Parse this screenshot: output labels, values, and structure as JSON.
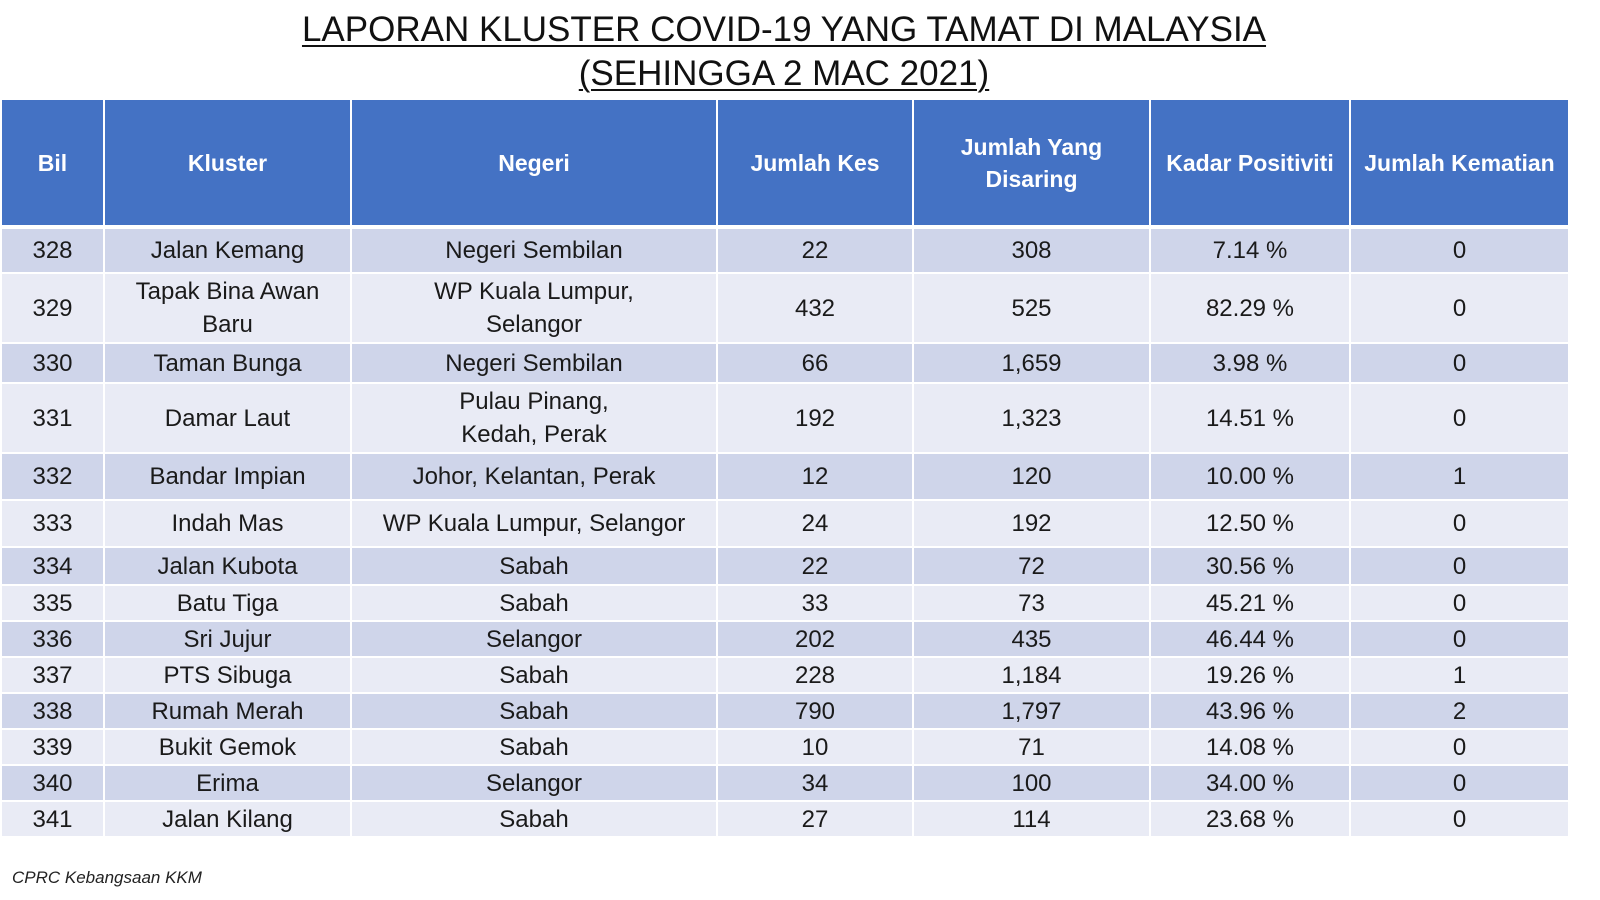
{
  "title": {
    "line1": "LAPORAN KLUSTER COVID-19 YANG TAMAT DI MALAYSIA",
    "line2": "(SEHINGGA  2 MAC 2021)"
  },
  "table": {
    "headers": [
      "Bil",
      "Kluster",
      "Negeri",
      "Jumlah Kes",
      "Jumlah Yang Disaring",
      "Kadar Positiviti",
      "Jumlah Kematian"
    ],
    "rows": [
      [
        "328",
        "Jalan Kemang",
        "Negeri Sembilan",
        "22",
        "308",
        "7.14 %",
        "0"
      ],
      [
        "329",
        "Tapak Bina Awan Baru",
        "WP Kuala Lumpur, Selangor",
        "432",
        "525",
        "82.29 %",
        "0"
      ],
      [
        "330",
        "Taman Bunga",
        "Negeri Sembilan",
        "66",
        "1,659",
        "3.98 %",
        "0"
      ],
      [
        "331",
        "Damar Laut",
        "Pulau Pinang, Kedah, Perak",
        "192",
        "1,323",
        "14.51 %",
        "0"
      ],
      [
        "332",
        "Bandar Impian",
        "Johor, Kelantan, Perak",
        "12",
        "120",
        "10.00 %",
        "1"
      ],
      [
        "333",
        "Indah Mas",
        "WP Kuala Lumpur, Selangor",
        "24",
        "192",
        "12.50 %",
        "0"
      ],
      [
        "334",
        "Jalan Kubota",
        "Sabah",
        "22",
        "72",
        "30.56 %",
        "0"
      ],
      [
        "335",
        "Batu Tiga",
        "Sabah",
        "33",
        "73",
        "45.21 %",
        "0"
      ],
      [
        "336",
        "Sri Jujur",
        "Selangor",
        "202",
        "435",
        "46.44 %",
        "0"
      ],
      [
        "337",
        "PTS Sibuga",
        "Sabah",
        "228",
        "1,184",
        "19.26 %",
        "1"
      ],
      [
        "338",
        "Rumah Merah",
        "Sabah",
        "790",
        "1,797",
        "43.96 %",
        "2"
      ],
      [
        "339",
        "Bukit Gemok",
        "Sabah",
        "10",
        "71",
        "14.08 %",
        "0"
      ],
      [
        "340",
        "Erima",
        "Selangor",
        "34",
        "100",
        "34.00 %",
        "0"
      ],
      [
        "341",
        "Jalan Kilang",
        "Sabah",
        "27",
        "114",
        "23.68 %",
        "0"
      ]
    ]
  },
  "footer": "CPRC Kebangsaan KKM"
}
